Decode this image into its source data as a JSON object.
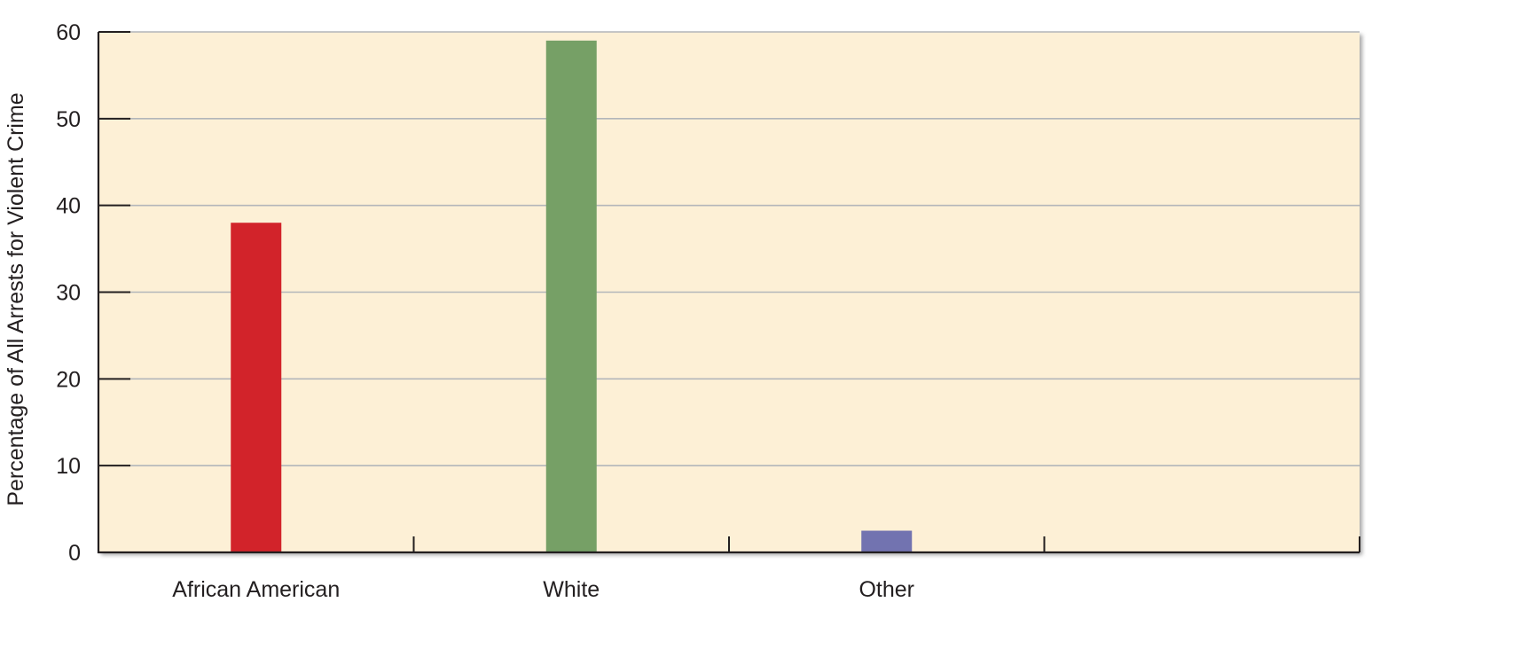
{
  "chart_data": {
    "type": "bar",
    "title": "",
    "xlabel": "",
    "ylabel": "Percentage of All Arrests for Violent Crime",
    "categories": [
      "African American",
      "White",
      "Other"
    ],
    "values": [
      38,
      59,
      2.5
    ],
    "bar_colors": [
      "#d2232a",
      "#76a066",
      "#7273b0"
    ],
    "ylim": [
      0,
      60
    ],
    "yticks": [
      0,
      10,
      20,
      30,
      40,
      50,
      60
    ],
    "ytick_labels": [
      "0",
      "10",
      "20",
      "30",
      "40",
      "50",
      "60"
    ],
    "x_slot_count": 4,
    "grid": true,
    "legend": "none",
    "colors": {
      "plot_background": "#fdf0d6",
      "gridline": "#b3b6ba",
      "axis": "#231f20"
    }
  }
}
